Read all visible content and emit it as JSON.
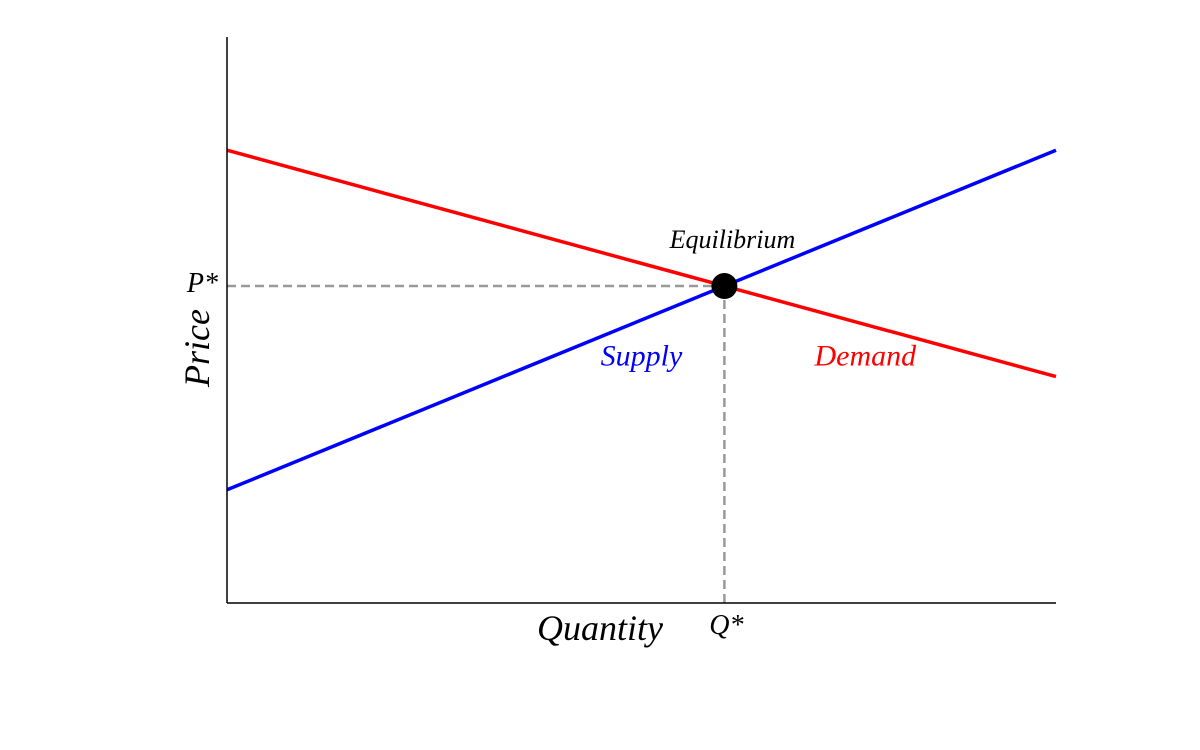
{
  "chart_data": {
    "type": "line",
    "title": "",
    "xlabel": "Quantity",
    "ylabel": "Price",
    "xlim": [
      0,
      10
    ],
    "ylim": [
      0,
      10
    ],
    "show_ticks": false,
    "grid": false,
    "legend": "none",
    "series": [
      {
        "name": "Supply",
        "color": "#0000ff",
        "x": [
          0,
          10
        ],
        "y": [
          2,
          8
        ]
      },
      {
        "name": "Demand",
        "color": "#ff0000",
        "x": [
          0,
          10
        ],
        "y": [
          8,
          4
        ]
      }
    ],
    "equilibrium": {
      "label": "Equilibrium",
      "x": 6,
      "y": 5.6,
      "color": "#000000",
      "x_label": "Q*",
      "y_label": "P*",
      "guide_color": "#999999"
    }
  }
}
